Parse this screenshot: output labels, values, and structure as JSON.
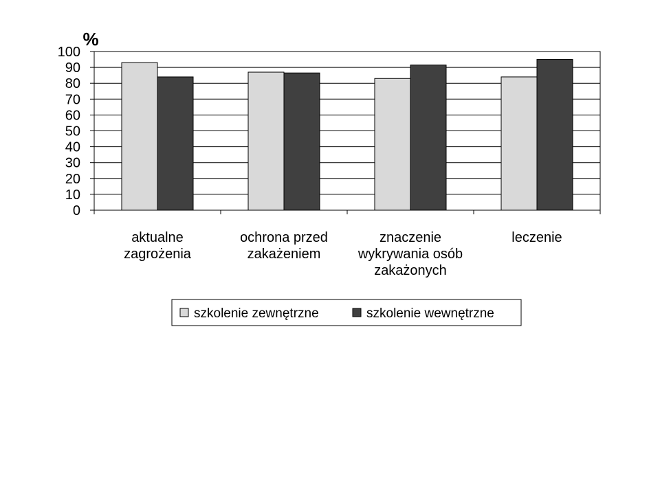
{
  "chart_data": {
    "type": "bar",
    "categories": [
      [
        "aktualne",
        "zagrożenia"
      ],
      [
        "ochrona przed",
        "zakażeniem"
      ],
      [
        "znaczenie",
        "wykrywania osób",
        "zakażonych"
      ],
      [
        "leczenie"
      ]
    ],
    "series": [
      {
        "name": "szkolenie zewnętrzne",
        "values": [
          93,
          87,
          83,
          84
        ],
        "color": "#d9d9d9"
      },
      {
        "name": "szkolenie wewnętrzne",
        "values": [
          84,
          86.5,
          91.5,
          95
        ],
        "color": "#404040"
      }
    ],
    "ylabel": "%",
    "ylim": [
      0,
      100
    ],
    "yticks": [
      "0",
      "10",
      "20",
      "30",
      "40",
      "50",
      "60",
      "70",
      "80",
      "90",
      "100"
    ],
    "grid": true,
    "legend_position": "bottom"
  }
}
